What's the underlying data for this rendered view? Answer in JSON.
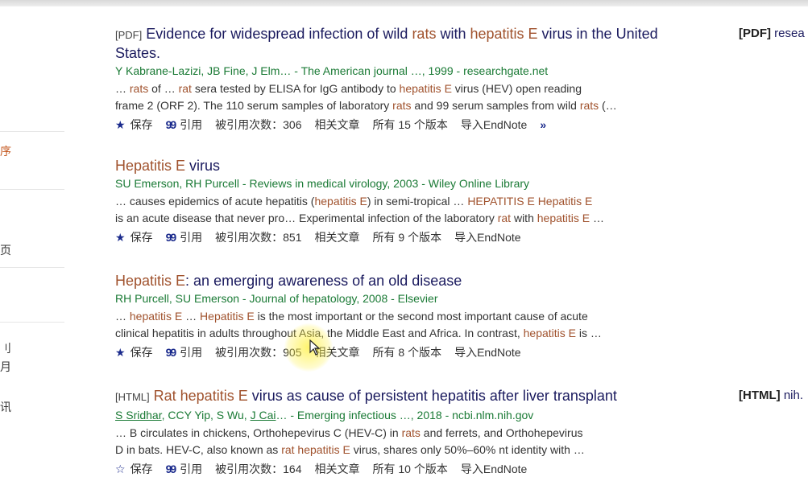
{
  "sidebar": {
    "fragments": [
      "序",
      "页",
      "刂",
      "月",
      "讯"
    ]
  },
  "actions_labels": {
    "save": "保存",
    "cite": "引用",
    "related": "相关文章",
    "endnote": "导入EndNote"
  },
  "results": [
    {
      "tag": "[PDF]",
      "title_pre": "Evidence for widespread infection of wild ",
      "title_hl1": "rats",
      "title_mid": " with ",
      "title_hl2": "hepatitis E",
      "title_post": " virus in the United States.",
      "authors": "Y Kabrane-Lazizi, JB Fine, J Elm… - The American journal …, 1999 - researchgate.net",
      "snippet_line1": [
        "… ",
        "rats",
        " of … ",
        "rat",
        " sera tested by ELISA for IgG antibody to ",
        "hepatitis E",
        " virus (HEV) open reading"
      ],
      "snippet_line2": [
        "frame 2 (ORF 2). The 110 serum samples of laboratory ",
        "rats",
        " and 99 serum samples from wild ",
        "rats",
        " (…"
      ],
      "cited_by": "被引用次数：306",
      "versions": "所有 15 个版本",
      "right": {
        "tag": "[PDF]",
        "site": "resea"
      }
    },
    {
      "title_hl1": "Hepatitis E",
      "title_post": " virus",
      "authors": "SU Emerson, RH Purcell - Reviews in medical virology, 2003 - Wiley Online Library",
      "snippet_line1": [
        "… causes epidemics of acute hepatitis (",
        "hepatitis E",
        ") in semi-tropical … ",
        "HEPATITIS E Hepatitis E",
        ""
      ],
      "snippet_line2": [
        "is an acute disease that never pro… Experimental infection of the laboratory ",
        "rat",
        " with ",
        "hepatitis E",
        " …"
      ],
      "cited_by": "被引用次数：851",
      "versions": "所有 9 个版本"
    },
    {
      "title_hl1": "Hepatitis E",
      "title_post": ": an emerging awareness of an old disease",
      "authors": "RH Purcell, SU Emerson - Journal of hepatology, 2008 - Elsevier",
      "snippet_line1": [
        "… ",
        "hepatitis E",
        " … ",
        "Hepatitis E",
        " is the most important or the second most important cause of acute"
      ],
      "snippet_line2": [
        "clinical hepatitis in adults throughout Asia, the Middle East and Africa. In contrast, ",
        "hepatitis E",
        " is …"
      ],
      "cited_by": "被引用次数：905",
      "versions": "所有 8 个版本"
    },
    {
      "tag": "[HTML]",
      "title_hl1": "Rat hepatitis E",
      "title_post": " virus as cause of persistent hepatitis after liver transplant",
      "authors_u1": "S Sridhar",
      "authors_mid": ", CCY Yip, S Wu, ",
      "authors_u2": "J Cai",
      "authors_post": "… - Emerging infectious …, 2018 - ncbi.nlm.nih.gov",
      "snippet_line1": [
        "… B circulates in chickens, Orthohepevirus C (HEV-C) in ",
        "rats",
        " and ferrets, and Orthohepevirus"
      ],
      "snippet_line2": [
        "D in bats. HEV-C, also known as ",
        "rat hepatitis E",
        " virus, shares only 50%–60% nt identity with …"
      ],
      "cited_by": "被引用次数：164",
      "versions": "所有 10 个版本",
      "right": {
        "tag": "[HTML]",
        "site": "nih."
      }
    }
  ]
}
